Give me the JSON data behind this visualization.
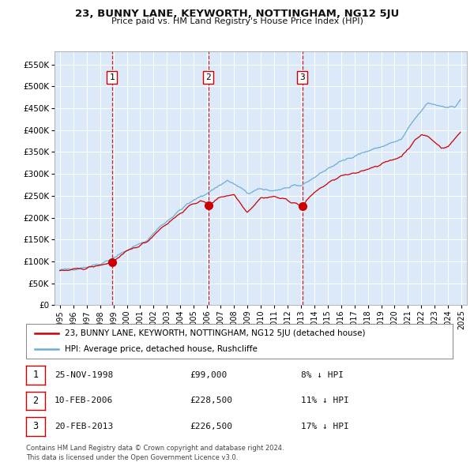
{
  "title": "23, BUNNY LANE, KEYWORTH, NOTTINGHAM, NG12 5JU",
  "subtitle": "Price paid vs. HM Land Registry's House Price Index (HPI)",
  "legend_line1": "23, BUNNY LANE, KEYWORTH, NOTTINGHAM, NG12 5JU (detached house)",
  "legend_line2": "HPI: Average price, detached house, Rushcliffe",
  "transactions": [
    {
      "num": 1,
      "date": "25-NOV-1998",
      "price": 99000,
      "price_str": "£99,000",
      "pct": "8% ↓ HPI"
    },
    {
      "num": 2,
      "date": "10-FEB-2006",
      "price": 228500,
      "price_str": "£228,500",
      "pct": "11% ↓ HPI"
    },
    {
      "num": 3,
      "date": "20-FEB-2013",
      "price": 226500,
      "price_str": "£226,500",
      "pct": "17% ↓ HPI"
    }
  ],
  "transaction_dates_decimal": [
    1998.9,
    2006.1,
    2013.1
  ],
  "plot_bg_color": "#dce9f8",
  "hpi_color": "#6baed6",
  "price_color": "#cc0000",
  "vline_color": "#cc0000",
  "grid_color": "#ffffff",
  "ylim": [
    0,
    580000
  ],
  "yticks": [
    0,
    50000,
    100000,
    150000,
    200000,
    250000,
    300000,
    350000,
    400000,
    450000,
    500000,
    550000
  ],
  "footer_line1": "Contains HM Land Registry data © Crown copyright and database right 2024.",
  "footer_line2": "This data is licensed under the Open Government Licence v3.0.",
  "hpi_anchors_x": [
    1995.0,
    1996.0,
    1997.0,
    1998.0,
    1998.9,
    2000.0,
    2001.5,
    2002.5,
    2003.5,
    2004.5,
    2005.5,
    2006.1,
    2007.5,
    2008.5,
    2009.0,
    2010.0,
    2011.0,
    2012.0,
    2013.0,
    2014.0,
    2015.0,
    2016.0,
    2017.0,
    2018.0,
    2019.0,
    2020.5,
    2021.5,
    2022.5,
    2023.5,
    2024.5,
    2024.917
  ],
  "hpi_anchors_y": [
    80000,
    83000,
    88000,
    95000,
    107000,
    125000,
    148000,
    180000,
    205000,
    230000,
    248000,
    258000,
    285000,
    268000,
    255000,
    265000,
    262000,
    268000,
    273000,
    292000,
    312000,
    328000,
    342000,
    352000,
    362000,
    378000,
    425000,
    462000,
    455000,
    452000,
    470000
  ],
  "red_anchors_x": [
    1995.0,
    1996.0,
    1997.0,
    1998.0,
    1998.9,
    2000.0,
    2001.5,
    2002.5,
    2003.5,
    2004.5,
    2005.5,
    2006.1,
    2007.0,
    2008.0,
    2009.0,
    2010.0,
    2011.0,
    2012.0,
    2013.1,
    2014.0,
    2015.0,
    2016.0,
    2017.0,
    2018.0,
    2019.0,
    2020.5,
    2021.5,
    2022.0,
    2022.5,
    2023.0,
    2023.5,
    2024.0,
    2024.917
  ],
  "red_anchors_y": [
    78000,
    81000,
    85000,
    91000,
    99000,
    122000,
    145000,
    175000,
    198000,
    222000,
    240000,
    228500,
    248000,
    253000,
    213000,
    245000,
    248000,
    240000,
    226500,
    258000,
    278000,
    295000,
    300000,
    312000,
    322000,
    340000,
    375000,
    390000,
    385000,
    372000,
    360000,
    362000,
    395000
  ]
}
